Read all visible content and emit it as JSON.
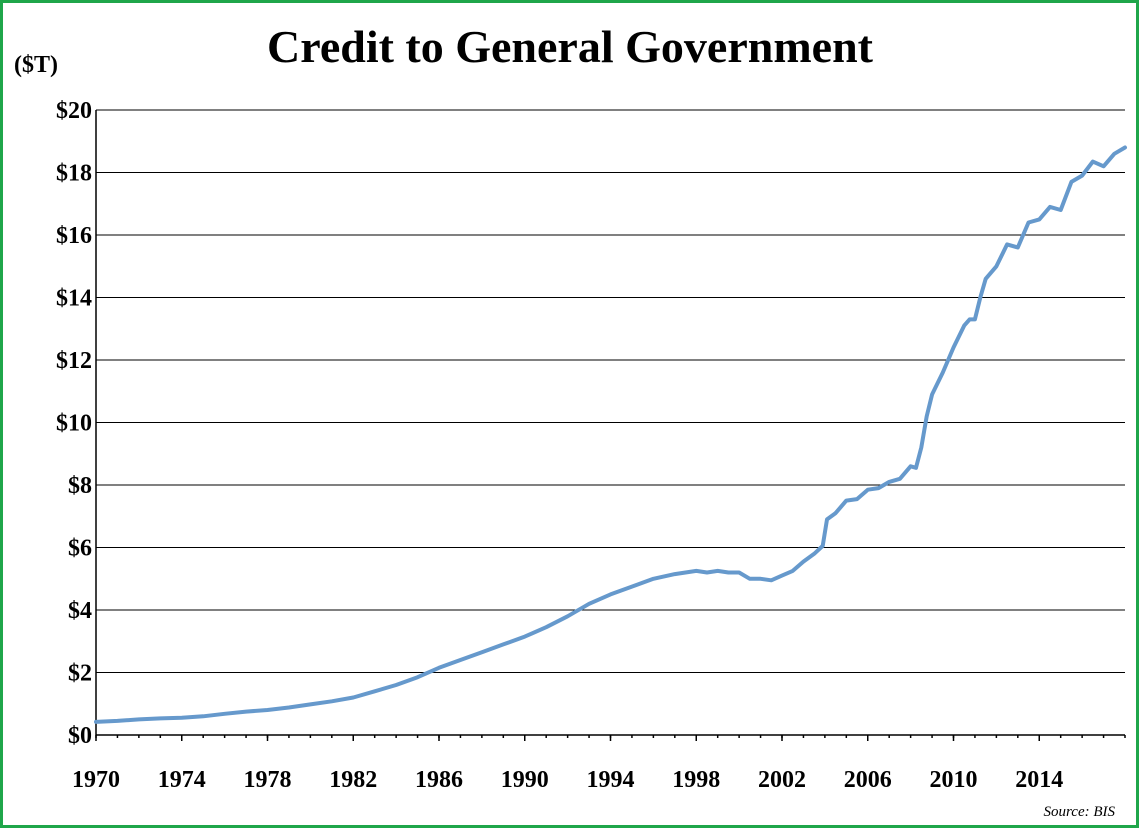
{
  "chart_data": {
    "type": "line",
    "title": "Credit to General Government",
    "ylabel": "($T)",
    "source": "Source: BIS",
    "xlim": [
      1970,
      2018
    ],
    "ylim": [
      0,
      20
    ],
    "y_ticks": [
      0,
      2,
      4,
      6,
      8,
      10,
      12,
      14,
      16,
      18,
      20
    ],
    "y_tick_labels": [
      "$0",
      "$2",
      "$4",
      "$6",
      "$8",
      "$10",
      "$12",
      "$14",
      "$16",
      "$18",
      "$20"
    ],
    "x_ticks": [
      1970,
      1974,
      1978,
      1982,
      1986,
      1990,
      1994,
      1998,
      2002,
      2006,
      2010,
      2014
    ],
    "x_tick_labels": [
      "1970",
      "1974",
      "1978",
      "1982",
      "1986",
      "1990",
      "1994",
      "1998",
      "2002",
      "2006",
      "2010",
      "2014"
    ],
    "grid": true,
    "series": [
      {
        "color": "#6699cc",
        "x": [
          1970,
          1971,
          1972,
          1973,
          1974,
          1975,
          1976,
          1977,
          1978,
          1979,
          1980,
          1981,
          1982,
          1983,
          1984,
          1985,
          1986,
          1987,
          1988,
          1989,
          1990,
          1991,
          1992,
          1993,
          1994,
          1995,
          1996,
          1997,
          1998,
          1998.5,
          1999,
          1999.5,
          2000,
          2000.5,
          2001,
          2001.5,
          2002,
          2002.5,
          2003,
          2003.5,
          2003.9,
          2004.1,
          2004.5,
          2005,
          2005.5,
          2006,
          2006.5,
          2007,
          2007.5,
          2008,
          2008.25,
          2008.5,
          2008.75,
          2009,
          2009.5,
          2010,
          2010.5,
          2010.75,
          2011,
          2011.25,
          2011.5,
          2012,
          2012.5,
          2013,
          2013.5,
          2014,
          2014.5,
          2015,
          2015.5,
          2016,
          2016.5,
          2017,
          2017.5,
          2018
        ],
        "values": [
          0.42,
          0.45,
          0.5,
          0.53,
          0.55,
          0.6,
          0.68,
          0.75,
          0.8,
          0.88,
          0.98,
          1.08,
          1.2,
          1.4,
          1.6,
          1.85,
          2.15,
          2.4,
          2.65,
          2.9,
          3.15,
          3.45,
          3.8,
          4.2,
          4.5,
          4.75,
          5.0,
          5.15,
          5.25,
          5.2,
          5.25,
          5.2,
          5.2,
          5.0,
          5.0,
          4.95,
          5.1,
          5.25,
          5.55,
          5.8,
          6.05,
          6.9,
          7.1,
          7.5,
          7.55,
          7.85,
          7.9,
          8.1,
          8.2,
          8.6,
          8.55,
          9.2,
          10.2,
          10.9,
          11.6,
          12.4,
          13.1,
          13.3,
          13.3,
          14.0,
          14.6,
          15.0,
          15.7,
          15.6,
          16.4,
          16.5,
          16.9,
          16.8,
          17.7,
          17.9,
          18.35,
          18.2,
          18.6,
          18.8
        ]
      }
    ]
  }
}
